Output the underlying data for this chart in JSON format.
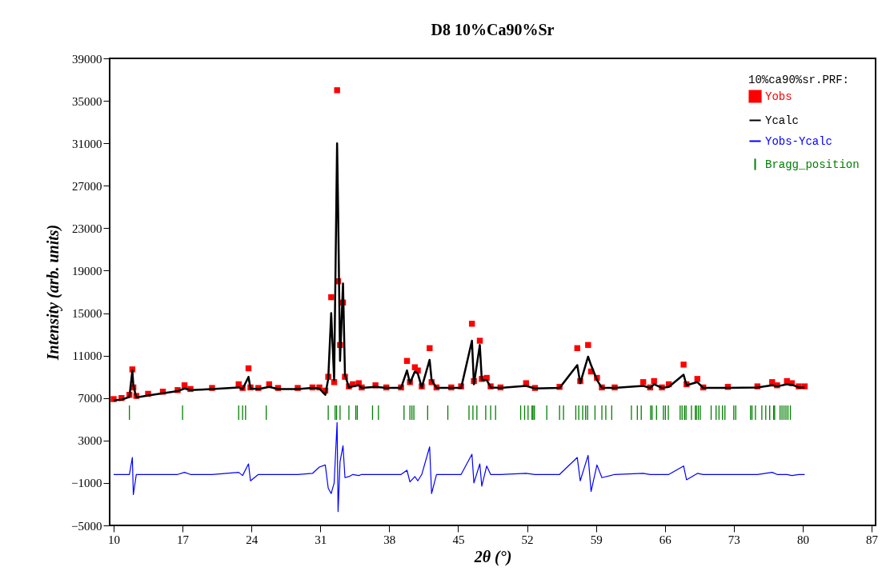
{
  "chart_data": {
    "type": "scatter",
    "title": "D8 10%Ca90%Sr",
    "xlabel": "2θ (°)",
    "ylabel": "Intensity (arb. units)",
    "legend_title": "10%ca90%sr.PRF:",
    "legend": "top right",
    "grid": false,
    "xlim": [
      10,
      87
    ],
    "ylim": [
      -5000,
      39000
    ],
    "xticks": [
      10,
      17,
      24,
      31,
      38,
      45,
      52,
      59,
      66,
      73,
      80,
      87
    ],
    "yticks": [
      -5000,
      -1000,
      3000,
      7000,
      11000,
      15000,
      19000,
      23000,
      27000,
      31000,
      35000,
      39000
    ],
    "x": [
      10.0,
      10.8,
      11.6,
      11.9,
      12.0,
      12.3,
      13.5,
      15.0,
      16.5,
      17.2,
      17.8,
      20.0,
      22.7,
      23.1,
      23.7,
      23.9,
      24.7,
      25.8,
      26.7,
      28.7,
      30.2,
      30.9,
      31.5,
      31.8,
      32.1,
      32.4,
      32.7,
      32.8,
      33.0,
      33.3,
      33.5,
      33.9,
      34.3,
      34.9,
      35.2,
      36.6,
      37.7,
      39.2,
      39.8,
      40.1,
      40.6,
      40.9,
      41.3,
      42.1,
      42.3,
      42.8,
      44.3,
      45.3,
      46.4,
      46.6,
      47.2,
      47.4,
      47.9,
      48.3,
      49.3,
      51.9,
      52.8,
      55.3,
      57.1,
      57.4,
      58.2,
      58.5,
      59.1,
      59.6,
      60.9,
      63.8,
      64.5,
      64.9,
      65.7,
      66.4,
      67.9,
      68.2,
      69.3,
      69.9,
      72.4,
      75.4,
      76.9,
      77.4,
      78.4,
      78.9,
      79.6,
      80.2
    ],
    "series": [
      {
        "name": "Yobs",
        "marker": "square",
        "color": "#ff0000",
        "values": [
          6900,
          7000,
          7300,
          9700,
          8000,
          7200,
          7400,
          7600,
          7750,
          8200,
          7850,
          7950,
          8300,
          7950,
          9800,
          8000,
          7950,
          8300,
          7950,
          7950,
          8000,
          8000,
          7700,
          9000,
          16500,
          8500,
          36000,
          18000,
          12000,
          16000,
          9000,
          8100,
          8300,
          8400,
          8000,
          8200,
          8000,
          8000,
          10500,
          8500,
          9900,
          9600,
          8100,
          11700,
          8500,
          8000,
          8000,
          8100,
          14000,
          8600,
          12400,
          8800,
          8900,
          8100,
          8000,
          8400,
          7950,
          8050,
          11700,
          8600,
          12000,
          9500,
          8900,
          8000,
          8000,
          8500,
          8000,
          8600,
          8000,
          8300,
          10150,
          8300,
          8800,
          8000,
          8050,
          8100,
          8500,
          8200,
          8600,
          8400,
          8100,
          8100
        ]
      },
      {
        "name": "Ycalc",
        "type": "line",
        "color": "#000000",
        "values": [
          6800,
          6850,
          7100,
          9600,
          8200,
          7050,
          7250,
          7450,
          7650,
          7900,
          7750,
          7850,
          8000,
          7850,
          9000,
          7900,
          7850,
          8050,
          7850,
          7850,
          7950,
          7900,
          7300,
          8800,
          15000,
          8700,
          31000,
          25000,
          10500,
          17800,
          9200,
          8000,
          8100,
          8200,
          7950,
          8050,
          7950,
          7950,
          9600,
          8400,
          9500,
          9300,
          8000,
          10600,
          8700,
          7950,
          7950,
          7950,
          12400,
          8300,
          12000,
          8700,
          8700,
          8000,
          7950,
          8150,
          7900,
          7950,
          10100,
          8400,
          10900,
          10100,
          8700,
          7950,
          7950,
          8150,
          7950,
          8300,
          7950,
          8050,
          9200,
          8200,
          8500,
          7950,
          7950,
          8000,
          8200,
          8100,
          8300,
          8250,
          8000,
          8000
        ]
      },
      {
        "name": "Yobs-Ycalc",
        "type": "line",
        "color": "#0000ff",
        "values": [
          -200,
          -200,
          -200,
          1400,
          -2100,
          -200,
          -200,
          -200,
          -200,
          0,
          -200,
          -200,
          0,
          -300,
          800,
          -800,
          -200,
          -200,
          -200,
          -200,
          -100,
          500,
          700,
          -1500,
          -2000,
          -1000,
          4700,
          -3700,
          1000,
          2500,
          -500,
          -400,
          -200,
          -300,
          -200,
          -200,
          -200,
          -200,
          200,
          -900,
          -400,
          -800,
          -200,
          2400,
          -2000,
          -200,
          -200,
          -200,
          1700,
          -1000,
          800,
          -1300,
          600,
          -200,
          -200,
          -100,
          -200,
          -200,
          1400,
          -800,
          1600,
          -1800,
          700,
          -500,
          -200,
          -100,
          -200,
          -200,
          -200,
          -200,
          600,
          -700,
          -100,
          -200,
          -200,
          -200,
          0,
          -200,
          -200,
          -300,
          -200,
          -200
        ]
      },
      {
        "name": "Bragg_position",
        "type": "bar",
        "color": "#008000",
        "base": [
          4950,
          4950,
          4950,
          4950,
          4950,
          4950,
          4950,
          4950,
          4950,
          4950,
          4950,
          4950,
          4950,
          4950,
          4950,
          4950,
          4950,
          4950,
          4950,
          4950,
          4950,
          4950,
          4950,
          4950,
          4950,
          4950,
          4950,
          4950,
          4950,
          4950,
          4950,
          4950,
          4950,
          4950,
          4950,
          4950,
          4950,
          4950,
          4950,
          4950,
          4950,
          4950,
          4950,
          4950,
          4950,
          4950,
          4950,
          4950,
          4950,
          4950,
          4950,
          4950,
          4950,
          4950,
          4950,
          4950,
          4950,
          4950,
          4950,
          4950,
          4950,
          4950,
          4950,
          4950,
          4950,
          4950,
          4950,
          4950,
          4950,
          4950,
          4950,
          4950,
          4950,
          4950,
          4950,
          4950,
          4950,
          4950,
          4950,
          4950,
          4950,
          4950,
          4950,
          4950
        ],
        "x": [
          11.6,
          17.0,
          22.7,
          23.1,
          23.4,
          25.5,
          31.8,
          32.5,
          32.65,
          33.0,
          33.9,
          34.6,
          34.75,
          36.3,
          36.9,
          39.5,
          40.1,
          40.3,
          40.5,
          41.9,
          43.95,
          46.1,
          46.5,
          46.9,
          47.8,
          48.3,
          48.8,
          51.35,
          51.75,
          52.1,
          52.5,
          52.6,
          52.75,
          54.0,
          55.3,
          55.7,
          56.95,
          57.25,
          57.65,
          57.95,
          58.15,
          58.9,
          59.6,
          60.0,
          60.6,
          62.6,
          63.2,
          63.6,
          64.55,
          64.7,
          65.15,
          65.85,
          66.05,
          66.35,
          67.55,
          67.75,
          68.0,
          68.15,
          68.7,
          69.1,
          69.2,
          69.4,
          69.6,
          70.7,
          71.2,
          71.5,
          71.85,
          72.1,
          73.0,
          73.2,
          74.7,
          74.85,
          75.2,
          75.85,
          76.25,
          76.65,
          77.05,
          77.15,
          77.7,
          77.9,
          78.1,
          78.3,
          78.5,
          78.75
        ],
        "values": [
          1350,
          1350,
          1350,
          1350,
          1350,
          1350,
          1350,
          1350,
          1350,
          1350,
          1350,
          1350,
          1350,
          1350,
          1350,
          1350,
          1350,
          1350,
          1350,
          1350,
          1350,
          1350,
          1350,
          1350,
          1350,
          1350,
          1350,
          1350,
          1350,
          1350,
          1350,
          1350,
          1350,
          1350,
          1350,
          1350,
          1350,
          1350,
          1350,
          1350,
          1350,
          1350,
          1350,
          1350,
          1350,
          1350,
          1350,
          1350,
          1350,
          1350,
          1350,
          1350,
          1350,
          1350,
          1350,
          1350,
          1350,
          1350,
          1350,
          1350,
          1350,
          1350,
          1350,
          1350,
          1350,
          1350,
          1350,
          1350,
          1350,
          1350,
          1350,
          1350,
          1350,
          1350,
          1350,
          1350,
          1350,
          1350,
          1350,
          1350,
          1350,
          1350,
          1350,
          1350
        ]
      }
    ]
  }
}
